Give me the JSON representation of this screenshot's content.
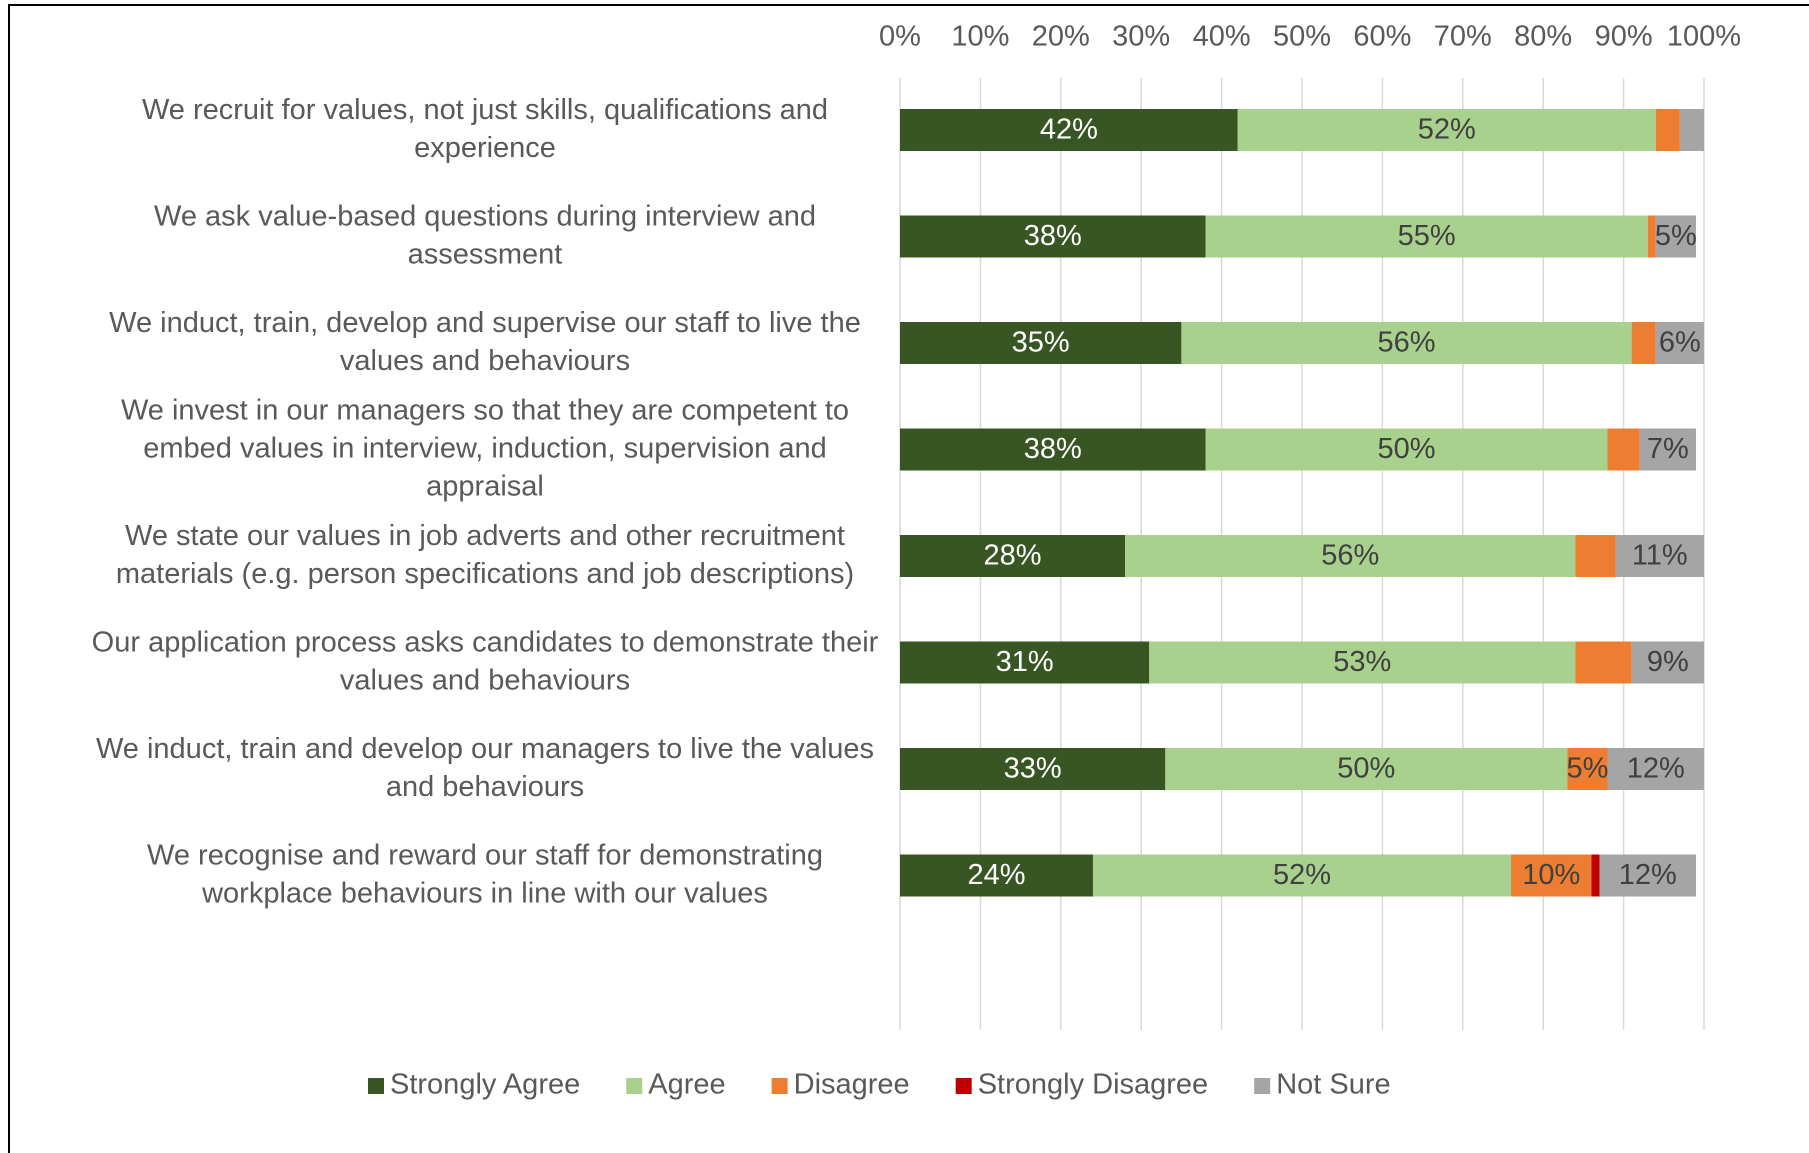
{
  "chart_data": {
    "type": "stacked_barh",
    "categories": [
      "We recruit for values, not just skills, qualifications and experience",
      "We ask value-based questions during interview and assessment",
      "We induct, train, develop and supervise our staff to live the values and behaviours",
      "We invest in our managers so that they are competent to embed values in interview, induction, supervision and appraisal",
      "We state our values in job adverts and other recruitment materials (e.g. person specifications and job descriptions)",
      "Our application process asks candidates to demonstrate their values and behaviours",
      "We induct, train and develop our managers to live the values and behaviours",
      "We recognise and reward our staff for demonstrating workplace behaviours in line with our values"
    ],
    "series": [
      {
        "name": "Strongly Agree",
        "color": "#375623",
        "values": [
          42,
          38,
          35,
          38,
          28,
          31,
          33,
          24
        ],
        "value_labels": [
          "42%",
          "38%",
          "35%",
          "38%",
          "28%",
          "31%",
          "33%",
          "24%"
        ]
      },
      {
        "name": "Agree",
        "color": "#a9d18e",
        "values": [
          52,
          55,
          56,
          50,
          56,
          53,
          50,
          52
        ],
        "value_labels": [
          "52%",
          "55%",
          "56%",
          "50%",
          "56%",
          "53%",
          "50%",
          "52%"
        ]
      },
      {
        "name": "Disagree",
        "color": "#ed7d31",
        "values": [
          3,
          1,
          3,
          4,
          5,
          7,
          5,
          10
        ],
        "value_labels": [
          null,
          null,
          null,
          null,
          null,
          null,
          "5%",
          "10%"
        ]
      },
      {
        "name": "Strongly Disagree",
        "color": "#c00000",
        "values": [
          0,
          0,
          0,
          0,
          0,
          0,
          0,
          1
        ],
        "value_labels": [
          null,
          null,
          null,
          null,
          null,
          null,
          null,
          null
        ]
      },
      {
        "name": "Not Sure",
        "color": "#a5a5a5",
        "values": [
          3,
          5,
          6,
          7,
          11,
          9,
          12,
          12
        ],
        "value_labels": [
          null,
          "5%",
          "6%",
          "7%",
          "11%",
          "9%",
          "12%",
          "12%"
        ]
      }
    ],
    "xlim": [
      0,
      100
    ],
    "xticks": [
      {
        "value": 0,
        "label": "0%"
      },
      {
        "value": 10,
        "label": "10%"
      },
      {
        "value": 20,
        "label": "20%"
      },
      {
        "value": 30,
        "label": "30%"
      },
      {
        "value": 40,
        "label": "40%"
      },
      {
        "value": 50,
        "label": "50%"
      },
      {
        "value": 60,
        "label": "60%"
      },
      {
        "value": 70,
        "label": "70%"
      },
      {
        "value": 80,
        "label": "80%"
      },
      {
        "value": 90,
        "label": "90%"
      },
      {
        "value": 100,
        "label": "100%"
      }
    ],
    "grid": true,
    "legend": "bottom"
  }
}
